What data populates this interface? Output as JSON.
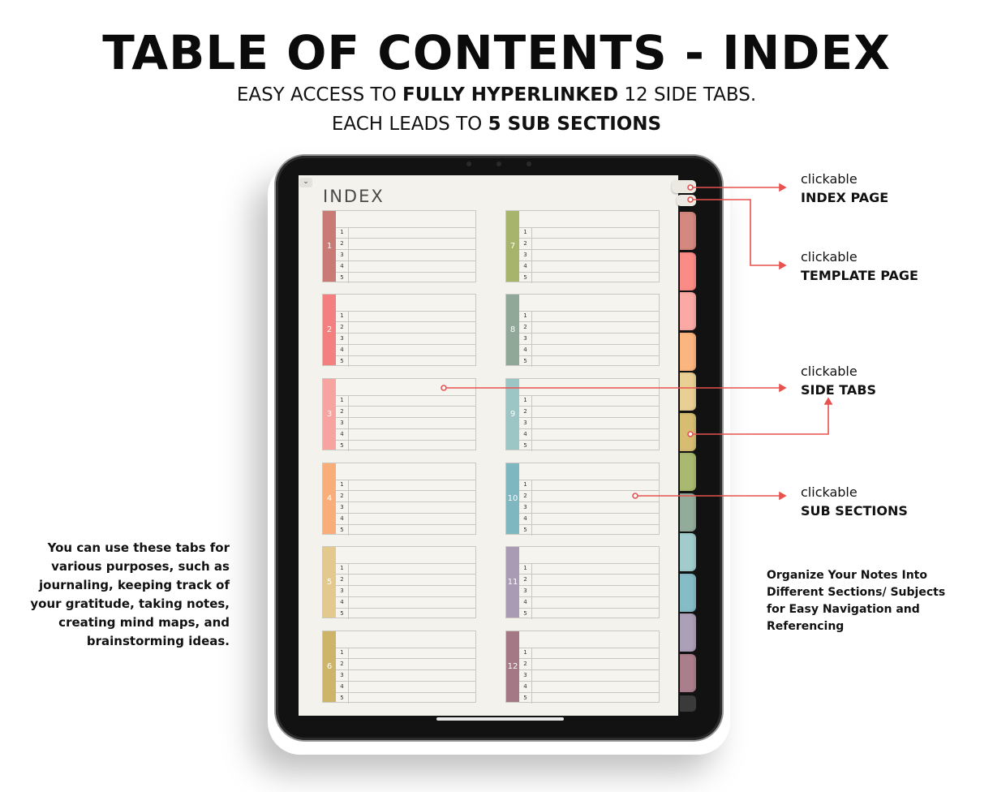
{
  "header": {
    "title": "TABLE OF CONTENTS - INDEX",
    "line1_a": "EASY ACCESS TO ",
    "line1_b": "FULLY HYPERLINKED",
    "line1_c": " 12 SIDE TABS.",
    "line2_a": "EACH LEADS TO ",
    "line2_b": "5 SUB SECTIONS"
  },
  "planner": {
    "heading": "INDEX",
    "collapse_glyph": "⌄",
    "sections": [
      {
        "label": "1",
        "color": "#c97a74"
      },
      {
        "label": "2",
        "color": "#f47f7f"
      },
      {
        "label": "3",
        "color": "#f7a3a0"
      },
      {
        "label": "4",
        "color": "#f9ad78"
      },
      {
        "label": "5",
        "color": "#e3c98d"
      },
      {
        "label": "6",
        "color": "#cdb469"
      },
      {
        "label": "7",
        "color": "#a7b56c"
      },
      {
        "label": "8",
        "color": "#8fa898"
      },
      {
        "label": "9",
        "color": "#9cc5c6"
      },
      {
        "label": "10",
        "color": "#7fb7c1"
      },
      {
        "label": "11",
        "color": "#a99bb3"
      },
      {
        "label": "12",
        "color": "#a57886"
      }
    ],
    "row_numbers": [
      "1",
      "2",
      "3",
      "4",
      "5"
    ],
    "side_tab_colors": [
      "#d4887f",
      "#fb8b87",
      "#fba9a4",
      "#fbb57e",
      "#e9cf94",
      "#d7bd72",
      "#a9b96f",
      "#93ab9b",
      "#a1cbcc",
      "#85bcc6",
      "#aca0b8",
      "#ab7e8c"
    ]
  },
  "callouts": {
    "index_page": {
      "line1": "clickable",
      "line2": "INDEX PAGE"
    },
    "template_page": {
      "line1": "clickable",
      "line2": "TEMPLATE PAGE"
    },
    "side_tabs": {
      "line1": "clickable",
      "line2": "SIDE TABS"
    },
    "sub_sections": {
      "line1": "clickable",
      "line2": "SUB SECTIONS"
    }
  },
  "notes": {
    "left": "You can use these tabs for various purposes, such as journaling, keeping track of your gratitude, taking notes, creating mind maps, and brainstorming ideas.",
    "right": "Organize Your Notes Into Different Sections/ Subjects for Easy Navigation and Referencing"
  },
  "colors": {
    "arrow": "#e8524f"
  }
}
